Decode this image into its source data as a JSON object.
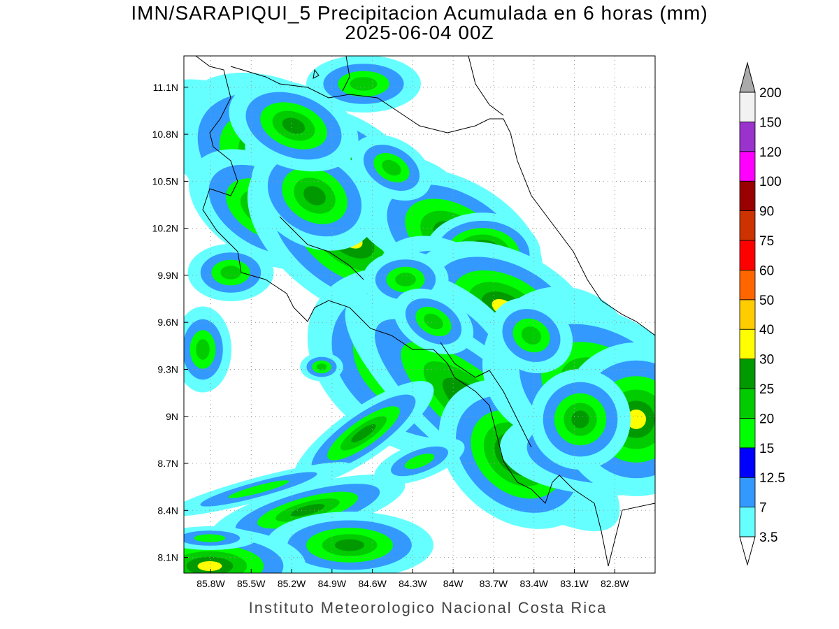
{
  "title": "IMN/SARAPIQUI_5 Precipitacion Acumulada en 6 horas (mm)",
  "subtitle": "2025-06-04 00Z",
  "footer": "Instituto Meteorologico Nacional Costa Rica",
  "map": {
    "xlim": [
      -86.0,
      -82.5
    ],
    "ylim": [
      8.0,
      11.3
    ],
    "grid": true,
    "xticks": [
      {
        "value": -85.8,
        "label": "85.8W"
      },
      {
        "value": -85.5,
        "label": "85.5W"
      },
      {
        "value": -85.2,
        "label": "85.2W"
      },
      {
        "value": -84.9,
        "label": "84.9W"
      },
      {
        "value": -84.6,
        "label": "84.6W"
      },
      {
        "value": -84.3,
        "label": "84.3W"
      },
      {
        "value": -84.0,
        "label": "84W"
      },
      {
        "value": -83.7,
        "label": "83.7W"
      },
      {
        "value": -83.4,
        "label": "83.4W"
      },
      {
        "value": -83.1,
        "label": "83.1W"
      },
      {
        "value": -82.8,
        "label": "82.8W"
      }
    ],
    "yticks": [
      {
        "value": 8.1,
        "label": "8.1N"
      },
      {
        "value": 8.4,
        "label": "8.4N"
      },
      {
        "value": 8.7,
        "label": "8.7N"
      },
      {
        "value": 9.0,
        "label": "9N"
      },
      {
        "value": 9.3,
        "label": "9.3N"
      },
      {
        "value": 9.6,
        "label": "9.6N"
      },
      {
        "value": 9.9,
        "label": "9.9N"
      },
      {
        "value": 10.2,
        "label": "10.2N"
      },
      {
        "value": 10.5,
        "label": "10.5N"
      },
      {
        "value": 10.8,
        "label": "10.8N"
      },
      {
        "value": 11.1,
        "label": "11.1N"
      }
    ]
  },
  "colorbar": {
    "ticks": [
      3.5,
      7,
      12.5,
      15,
      20,
      25,
      30,
      40,
      50,
      60,
      75,
      90,
      100,
      120,
      150,
      200
    ],
    "colors": [
      "#66ffff",
      "#3399ff",
      "#0000ff",
      "#00ff00",
      "#00cc00",
      "#009900",
      "#ffff00",
      "#ffcc00",
      "#ff6600",
      "#ff0000",
      "#cc3300",
      "#990000",
      "#ff00ff",
      "#9933cc",
      "#f2f2f2"
    ],
    "under_color": "#ffffff",
    "over_color": "#aaaaaa"
  }
}
